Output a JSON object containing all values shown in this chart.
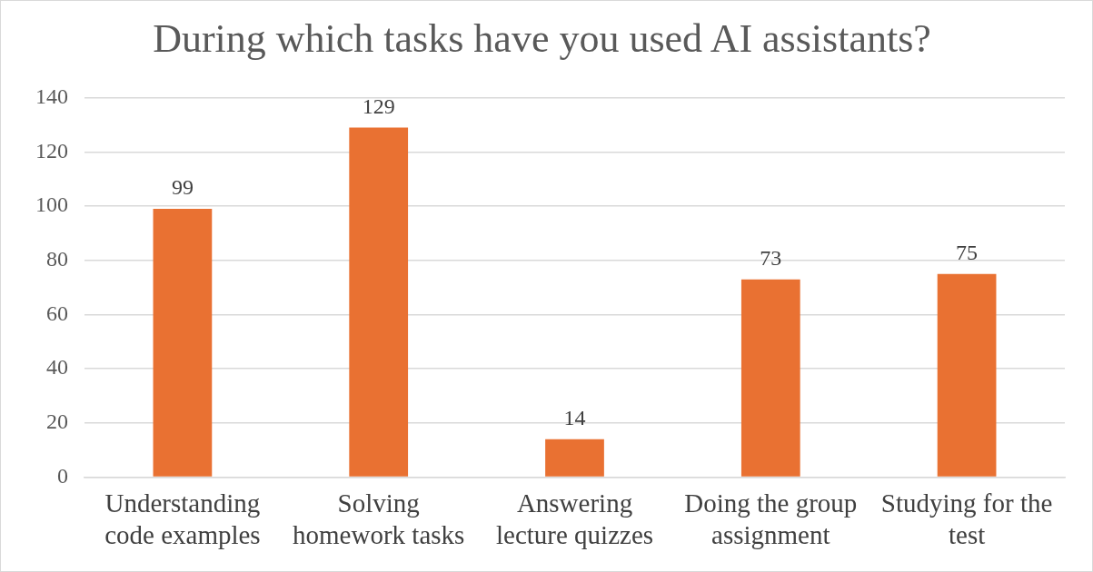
{
  "chart_data": {
    "type": "bar",
    "title": "During which tasks have you used AI assistants?",
    "categories": [
      "Understanding code examples",
      "Solving homework tasks",
      "Answering lecture quizzes",
      "Doing the group assignment",
      "Studying for the test"
    ],
    "values": [
      99,
      129,
      14,
      73,
      75
    ],
    "color": "#e97132",
    "ylim": [
      0,
      140
    ],
    "yticks": [
      0,
      20,
      40,
      60,
      80,
      100,
      120,
      140
    ],
    "grid": "y",
    "data_labels": true
  }
}
